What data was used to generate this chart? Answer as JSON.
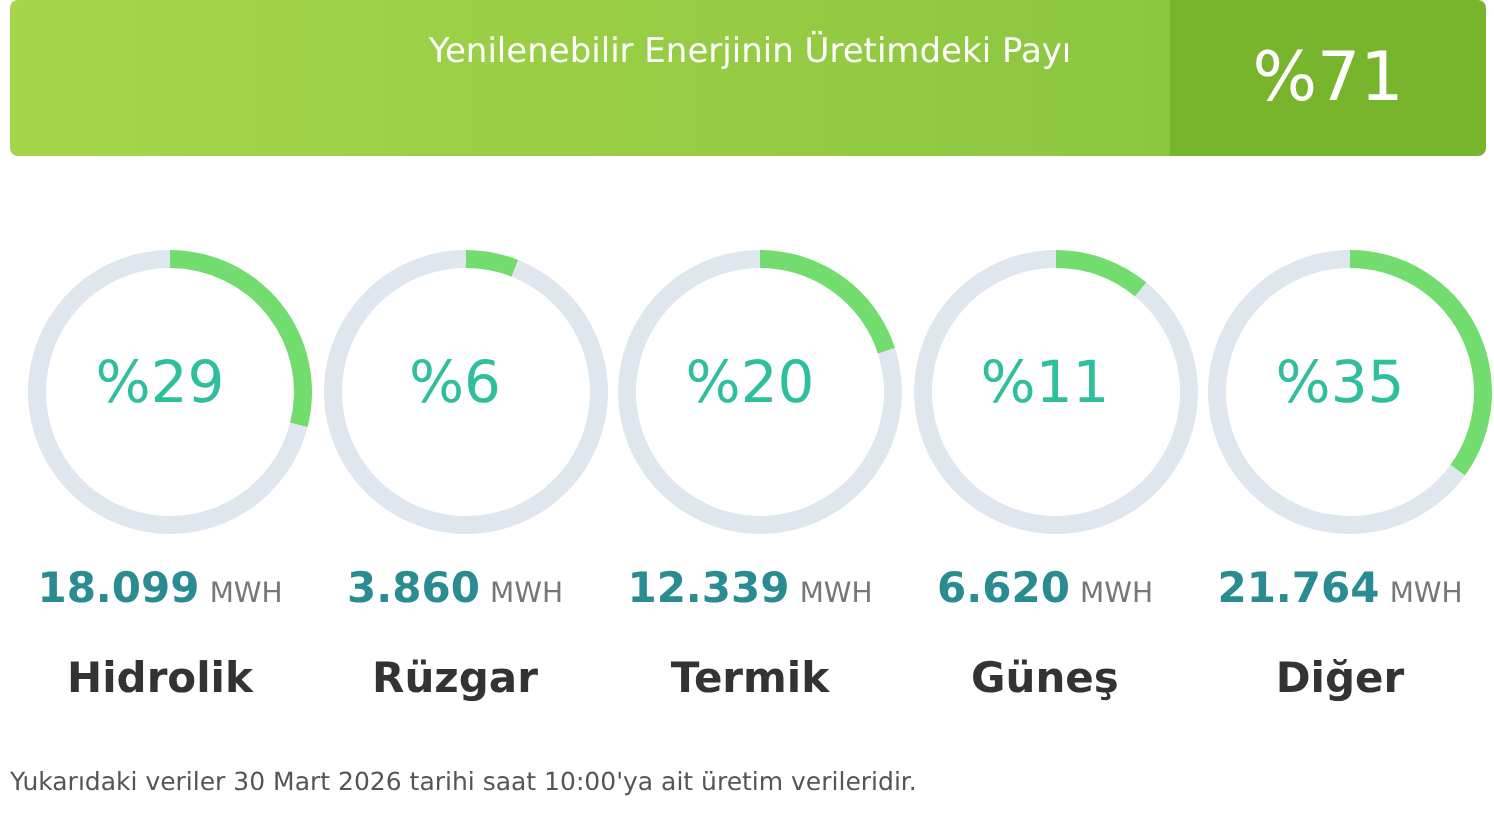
{
  "chart_data": [
    {
      "type": "other",
      "title": "Yenilenebilir Enerjinin Üretimdeki Payı",
      "subtitle": "%71",
      "annotations": [
        "Yukarıdaki veriler 30 Mart 2026 tarihi saat 10:00'ya ait üretim verileridir."
      ]
    },
    {
      "type": "donut",
      "title": "Hidrolik",
      "categories": [
        null,
        null
      ],
      "values": [
        29,
        71
      ],
      "colors": [
        "#72dc6e",
        "#e0e6ee"
      ],
      "annotations": [
        "%29",
        "18.099 MWH"
      ]
    },
    {
      "type": "donut",
      "title": "Rüzgar",
      "categories": [
        null,
        null
      ],
      "values": [
        6,
        94
      ],
      "colors": [
        "#72dc6e",
        "#e0e6ee"
      ],
      "annotations": [
        "%6",
        "3.860 MWH"
      ]
    },
    {
      "type": "donut",
      "title": "Termik",
      "categories": [
        null,
        null
      ],
      "values": [
        20,
        80
      ],
      "colors": [
        "#72dc6e",
        "#e0e6ee"
      ],
      "annotations": [
        "%20",
        "12.339 MWH"
      ]
    },
    {
      "type": "donut",
      "title": "Güneş",
      "categories": [
        null,
        null
      ],
      "values": [
        11,
        89
      ],
      "colors": [
        "#72dc6e",
        "#e0e6ee"
      ],
      "annotations": [
        "%11",
        "6.620 MWH"
      ]
    },
    {
      "type": "donut",
      "title": "Diğer",
      "categories": [
        null,
        null
      ],
      "values": [
        35,
        65
      ],
      "colors": [
        "#72dc6e",
        "#e0e6ee"
      ],
      "annotations": [
        "%35",
        "21.764 MWH"
      ]
    }
  ]
}
